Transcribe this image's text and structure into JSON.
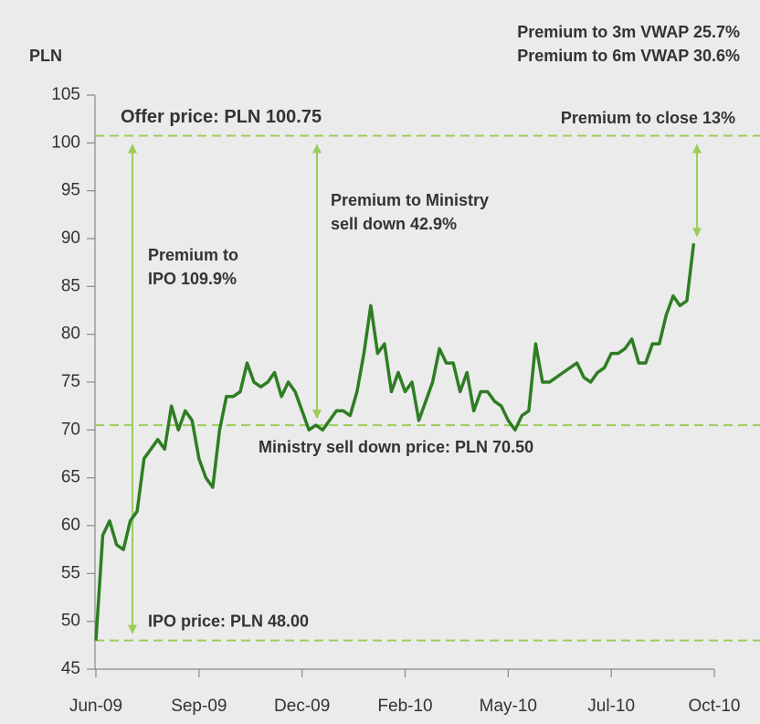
{
  "chart_data": {
    "type": "line",
    "y_label": "PLN",
    "header_notes": [
      "Premium to 3m VWAP 25.7%",
      "Premium to 6m VWAP 30.6%"
    ],
    "categories": [
      "Jun-09",
      null,
      null,
      null,
      null,
      null,
      null,
      null,
      null,
      null,
      null,
      null,
      null,
      null,
      null,
      "Sep-09",
      null,
      null,
      null,
      null,
      null,
      null,
      null,
      null,
      null,
      null,
      null,
      null,
      null,
      null,
      "Dec-09",
      null,
      null,
      null,
      null,
      null,
      null,
      null,
      null,
      null,
      null,
      null,
      null,
      null,
      null,
      "Feb-10",
      null,
      null,
      null,
      null,
      null,
      null,
      null,
      null,
      null,
      null,
      null,
      null,
      null,
      null,
      "May-10",
      null,
      null,
      null,
      null,
      null,
      null,
      null,
      null,
      null,
      null,
      null,
      null,
      null,
      null,
      "Jul-10",
      null,
      null,
      null,
      null,
      null,
      null,
      null,
      null,
      null,
      null,
      null,
      null,
      null,
      null,
      "Oct-10"
    ],
    "values": [
      48,
      59,
      60.5,
      58,
      57.5,
      60.5,
      61.5,
      67,
      68,
      69,
      68,
      72.5,
      70,
      72,
      71,
      67,
      65,
      64,
      70,
      73.5,
      73.5,
      74,
      77,
      75,
      74.5,
      75,
      76,
      73.5,
      75,
      74,
      72,
      70,
      70.5,
      70,
      71,
      72,
      72,
      71.5,
      74,
      78,
      83,
      78,
      79,
      74,
      76,
      74,
      75,
      71,
      73,
      75,
      78.5,
      77,
      77,
      74,
      76,
      72,
      74,
      74,
      73,
      72.5,
      71,
      70,
      71.5,
      72,
      79,
      75,
      75,
      75.5,
      76,
      76.5,
      77,
      75.5,
      75,
      76,
      76.5,
      78,
      78,
      78.5,
      79.5,
      77,
      77,
      79,
      79,
      82,
      84,
      83,
      83.5,
      89.5,
      null,
      null,
      null
    ],
    "color": "#2e7d23",
    "ylim": [
      45,
      105
    ],
    "yticks": [
      45,
      50,
      55,
      60,
      65,
      70,
      75,
      80,
      85,
      90,
      95,
      100,
      105
    ],
    "reference_lines": [
      {
        "value": 100.75,
        "label": "Offer price: PLN 100.75"
      },
      {
        "value": 70.5,
        "label": "Ministry sell down price: PLN 70.50"
      },
      {
        "value": 48,
        "label": "IPO price: PLN 48.00"
      }
    ],
    "reference_color": "#9ccc5a",
    "annotations": [
      [
        "Premium to",
        "IPO 109.9%"
      ],
      [
        "Premium to Ministry",
        "sell down 42.9%"
      ],
      [
        "Premium to close 13%"
      ]
    ]
  }
}
